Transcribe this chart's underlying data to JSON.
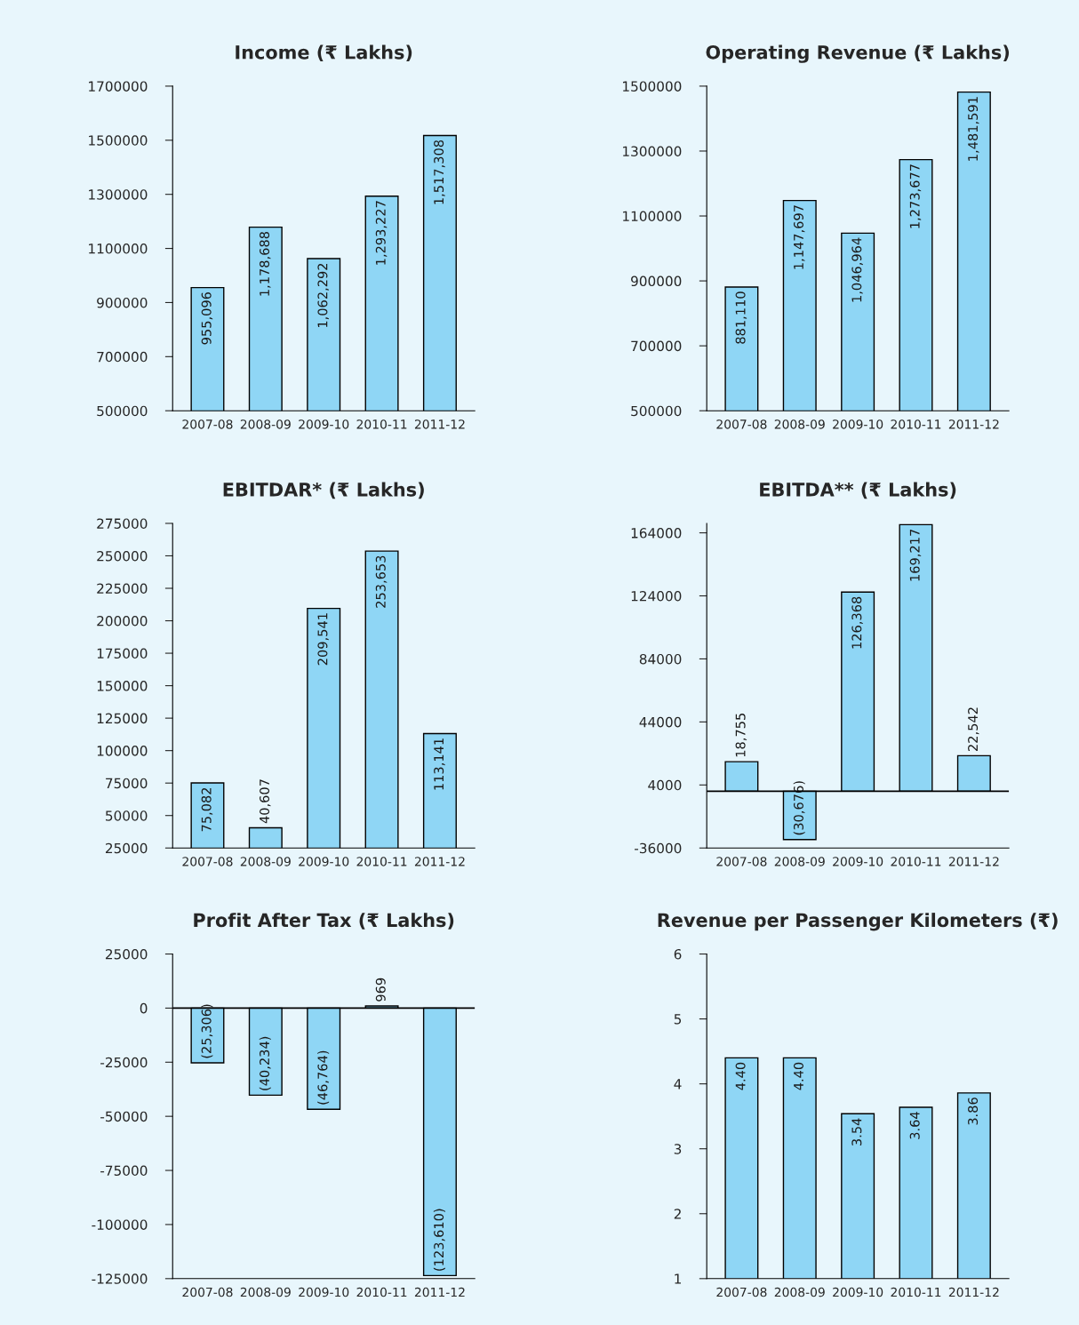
{
  "chart_data": [
    {
      "type": "bar",
      "title": "Income (₹ Lakhs)",
      "categories": [
        "2007-08",
        "2008-09",
        "2009-10",
        "2010-11",
        "2011-12"
      ],
      "values": [
        955096,
        1178688,
        1062292,
        1293227,
        1517308
      ],
      "value_labels": [
        "955,096",
        "1,178,688",
        "1,062,292",
        "1,293,227",
        "1,517,308"
      ],
      "color": "#8fd6f5",
      "ylim": [
        500000,
        1700000
      ],
      "yticks": [
        500000,
        700000,
        900000,
        1100000,
        1300000,
        1500000,
        1700000
      ],
      "grid": false
    },
    {
      "type": "bar",
      "title": "Operating Revenue (₹ Lakhs)",
      "categories": [
        "2007-08",
        "2008-09",
        "2009-10",
        "2010-11",
        "2011-12"
      ],
      "values": [
        881110,
        1147697,
        1046964,
        1273677,
        1481591
      ],
      "value_labels": [
        "881,110",
        "1,147,697",
        "1,046,964",
        "1,273,677",
        "1,481,591"
      ],
      "color": "#8fd6f5",
      "ylim": [
        500000,
        1500000
      ],
      "yticks": [
        500000,
        700000,
        900000,
        1100000,
        1300000,
        1500000
      ],
      "grid": false
    },
    {
      "type": "bar",
      "title": "EBITDAR* (₹ Lakhs)",
      "categories": [
        "2007-08",
        "2008-09",
        "2009-10",
        "2010-11",
        "2011-12"
      ],
      "values": [
        75082,
        40607,
        209541,
        253653,
        113141
      ],
      "value_labels": [
        "75,082",
        "40,607",
        "209,541",
        "253,653",
        "113,141"
      ],
      "color": "#8fd6f5",
      "ylim": [
        25000,
        275000
      ],
      "yticks": [
        25000,
        50000,
        75000,
        100000,
        125000,
        150000,
        175000,
        200000,
        225000,
        250000,
        275000
      ],
      "grid": false
    },
    {
      "type": "bar",
      "title": "EBITDA** (₹ Lakhs)",
      "categories": [
        "2007-08",
        "2008-09",
        "2009-10",
        "2010-11",
        "2011-12"
      ],
      "values": [
        18755,
        -30676,
        126368,
        169217,
        22542
      ],
      "value_labels": [
        "18,755",
        "(30,676)",
        "126,368",
        "169,217",
        "22,542"
      ],
      "color": "#8fd6f5",
      "ylim": [
        -36000,
        170000
      ],
      "yticks": [
        -36000,
        4000,
        44000,
        84000,
        124000,
        164000
      ],
      "ref_lines": [
        {
          "axis": "y",
          "value": 0,
          "color": "#000000"
        }
      ],
      "grid": false
    },
    {
      "type": "bar",
      "title": "Profit After Tax (₹ Lakhs)",
      "categories": [
        "2007-08",
        "2008-09",
        "2009-10",
        "2010-11",
        "2011-12"
      ],
      "values": [
        -25306,
        -40234,
        -46764,
        969,
        -123610
      ],
      "value_labels": [
        "(25,306)",
        "(40,234)",
        "(46,764)",
        "969",
        "(123,610)"
      ],
      "color": "#8fd6f5",
      "ylim": [
        -125000,
        25000
      ],
      "yticks": [
        -125000,
        -100000,
        -75000,
        -50000,
        -25000,
        0,
        25000
      ],
      "ref_lines": [
        {
          "axis": "y",
          "value": 0,
          "color": "#000000"
        }
      ],
      "grid": false
    },
    {
      "type": "bar",
      "title": "Revenue per Passenger Kilometers (₹)",
      "categories": [
        "2007-08",
        "2008-09",
        "2009-10",
        "2010-11",
        "2011-12"
      ],
      "values": [
        4.4,
        4.4,
        3.54,
        3.64,
        3.86
      ],
      "value_labels": [
        "4.40",
        "4.40",
        "3.54",
        "3.64",
        "3.86"
      ],
      "color": "#8fd6f5",
      "ylim": [
        1,
        6
      ],
      "yticks": [
        1,
        2,
        3,
        4,
        5,
        6
      ],
      "grid": false
    }
  ]
}
